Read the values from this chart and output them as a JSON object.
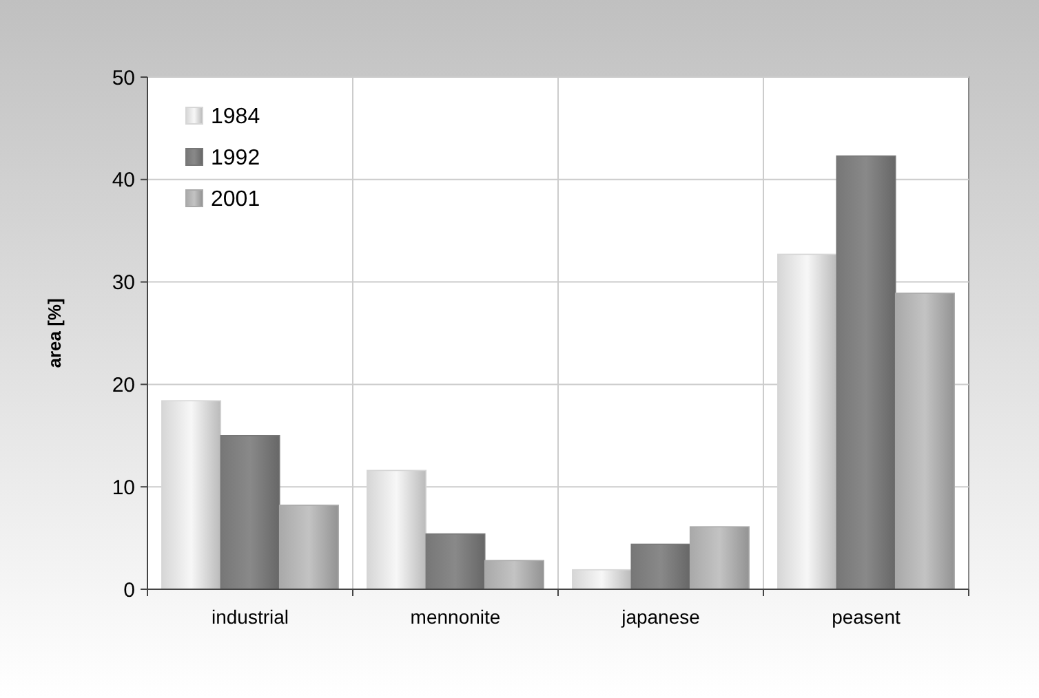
{
  "chart_data": {
    "type": "bar",
    "ylabel": "area [%]",
    "categories": [
      "industrial",
      "mennonite",
      "japanese",
      "peasent"
    ],
    "series": [
      {
        "name": "1984",
        "color": "#d6d6d6",
        "values": [
          18.4,
          11.6,
          1.9,
          32.7
        ]
      },
      {
        "name": "1992",
        "color": "#777777",
        "values": [
          15.0,
          5.4,
          4.4,
          42.3
        ]
      },
      {
        "name": "2001",
        "color": "#a9a9a9",
        "values": [
          8.2,
          2.8,
          6.1,
          28.9
        ]
      }
    ],
    "ylim": [
      0,
      50
    ],
    "yticks": [
      0,
      10,
      20,
      30,
      40,
      50
    ],
    "grid": true,
    "legend": "top left"
  }
}
